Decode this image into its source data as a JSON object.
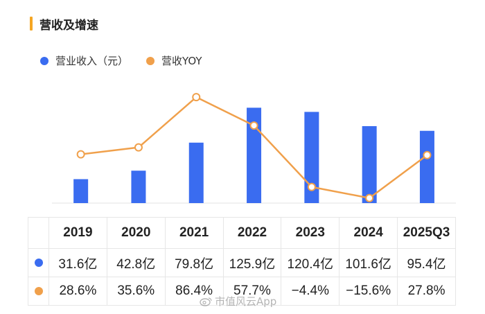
{
  "header": {
    "title": "营收及增速"
  },
  "colors": {
    "bar": "#3a6cf0",
    "line": "#f0a04b",
    "accent": "#f5a623"
  },
  "legend": [
    {
      "label": "营业收入（元）",
      "color": "#3a6cf0"
    },
    {
      "label": "营收YOY",
      "color": "#f0a04b"
    }
  ],
  "chart_data": {
    "type": "bar",
    "title": "营收及增速",
    "categories": [
      "2019",
      "2020",
      "2021",
      "2022",
      "2023",
      "2024",
      "2025Q3"
    ],
    "series": [
      {
        "name": "营业收入（元）",
        "type": "bar",
        "values": [
          31.6,
          42.8,
          79.8,
          125.9,
          120.4,
          101.6,
          95.4
        ],
        "labels": [
          "31.6亿",
          "42.8亿",
          "79.8亿",
          "125.9亿",
          "120.4亿",
          "101.6亿",
          "95.4亿"
        ]
      },
      {
        "name": "营收YOY",
        "type": "line",
        "values": [
          28.6,
          35.6,
          86.4,
          57.7,
          -4.4,
          -15.6,
          27.8
        ],
        "labels": [
          "28.6%",
          "35.6%",
          "86.4%",
          "57.7%",
          "−4.4%",
          "−15.6%",
          "27.8%"
        ]
      }
    ]
  },
  "watermark": "市值风云App"
}
